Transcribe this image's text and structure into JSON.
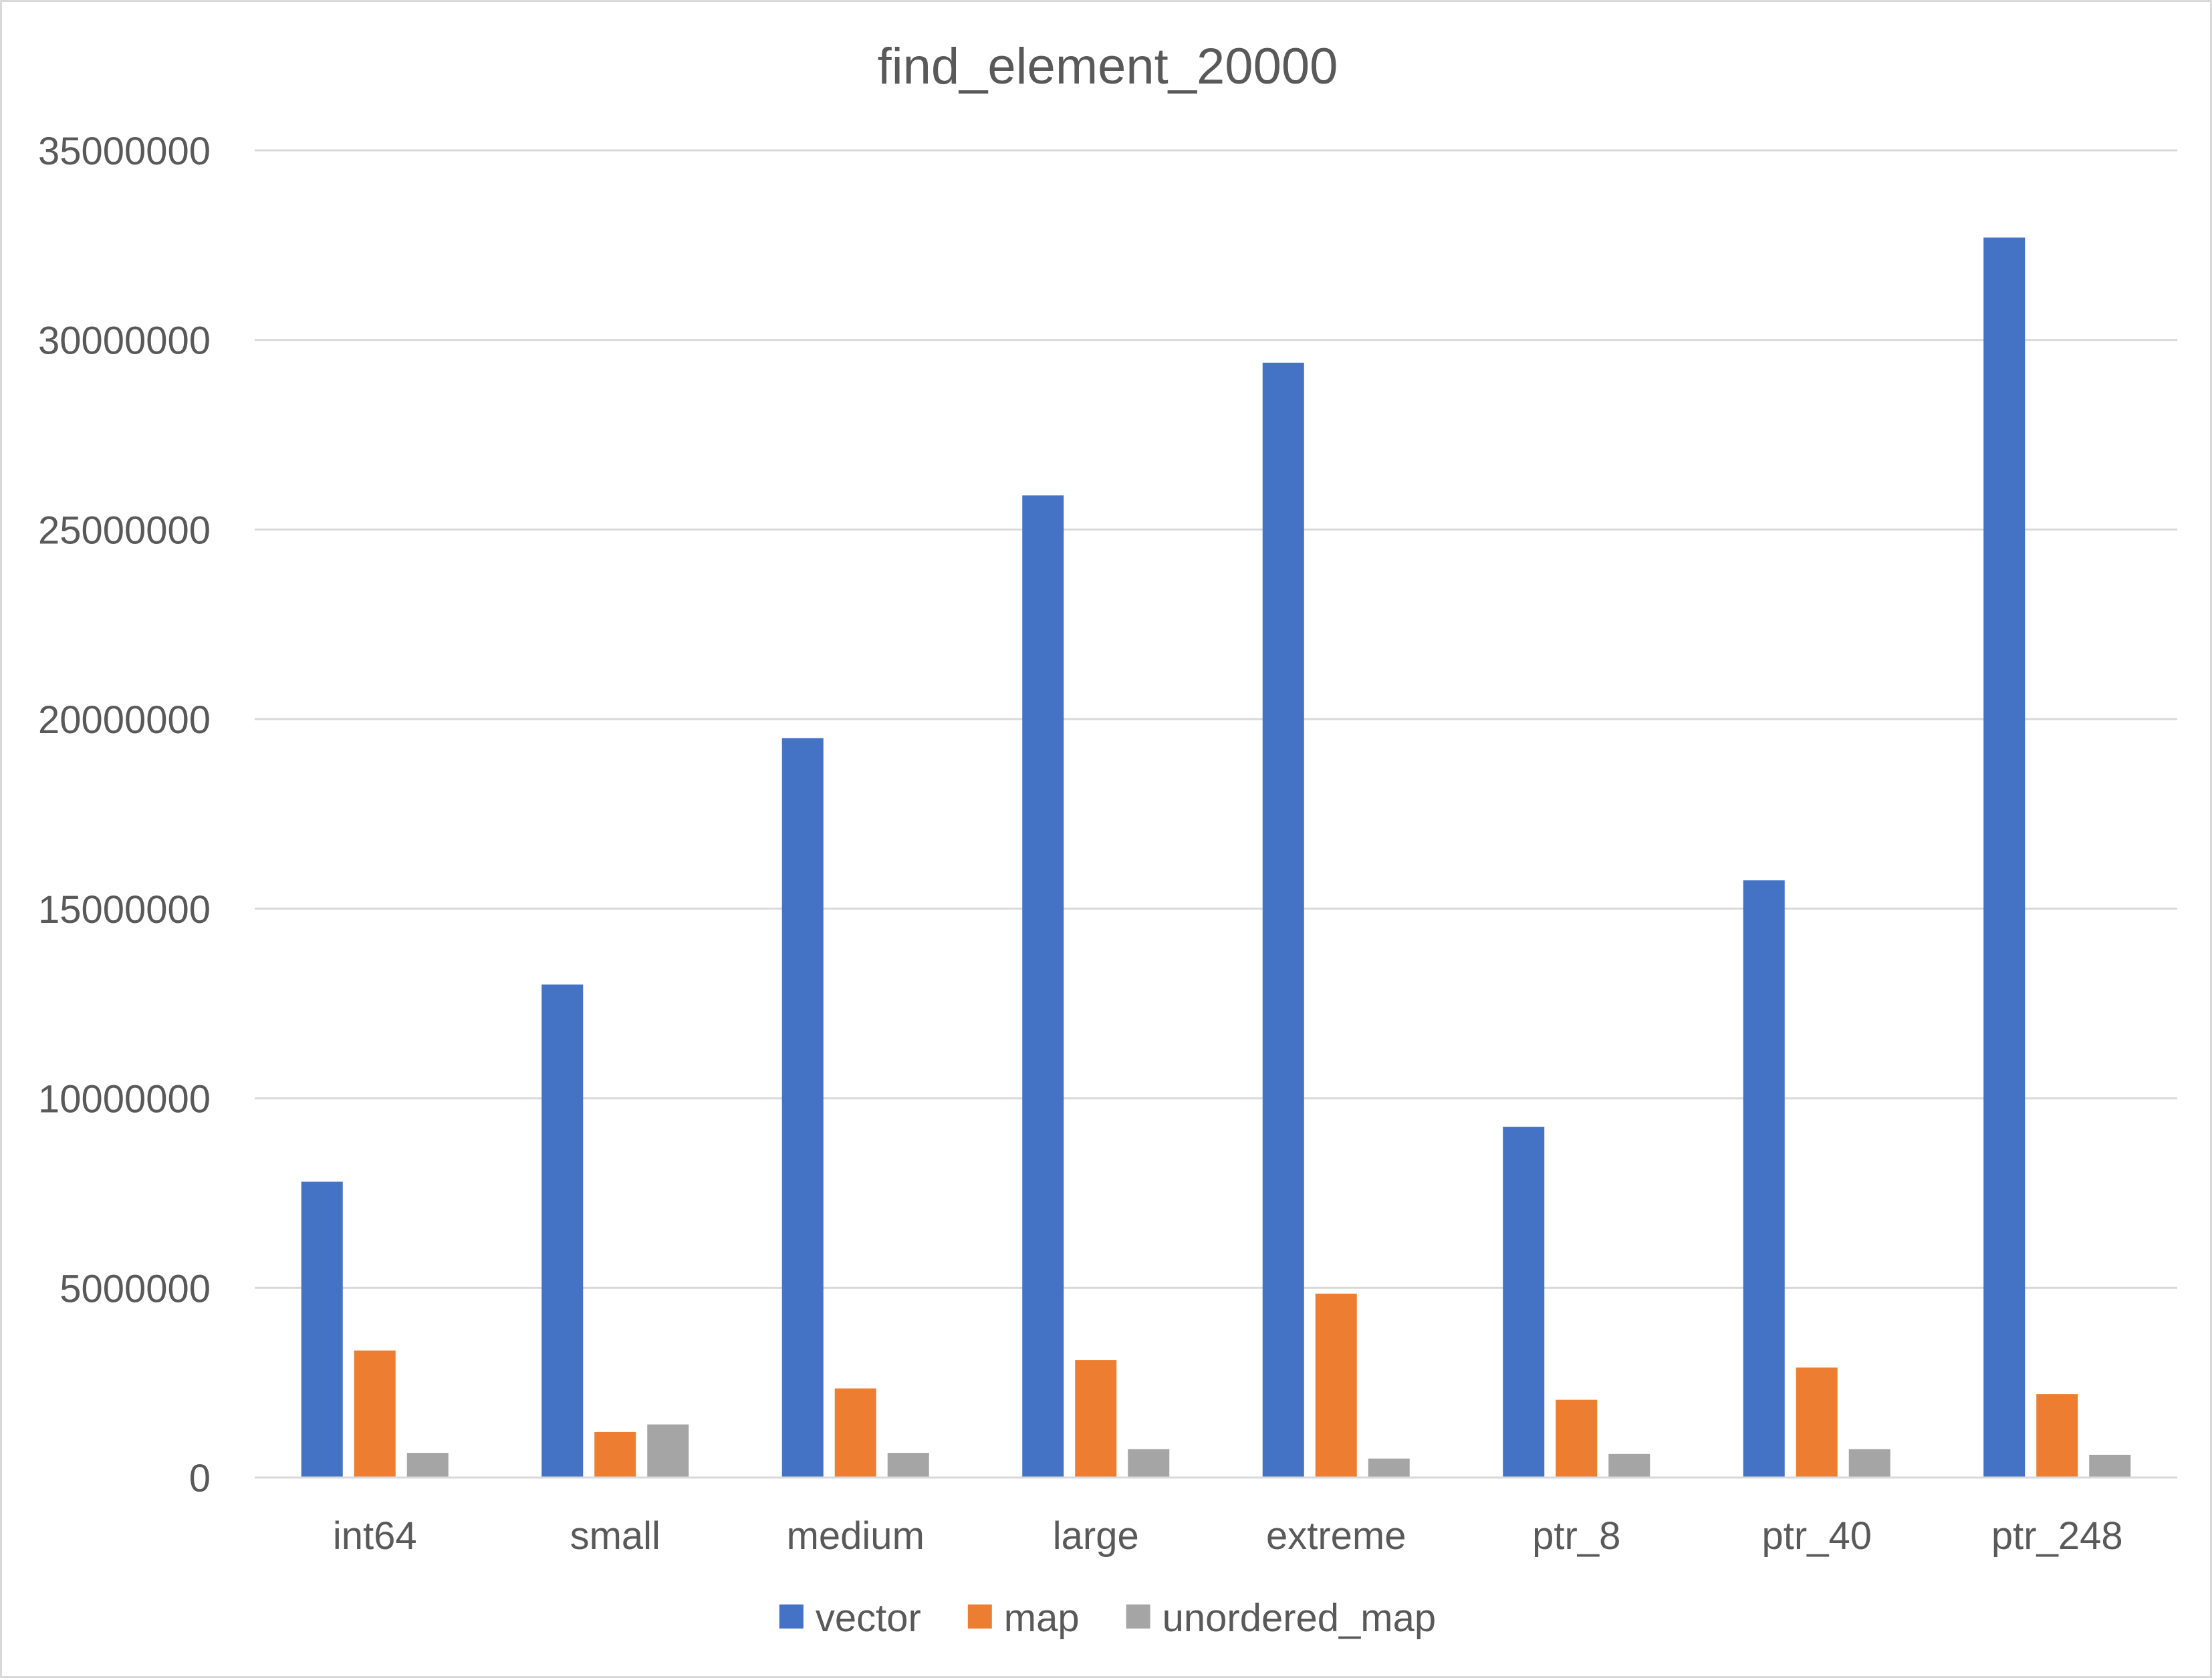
{
  "chart_data": {
    "type": "bar",
    "title": "find_element_20000",
    "xlabel": "",
    "ylabel": "",
    "categories": [
      "int64",
      "small",
      "medium",
      "large",
      "extreme",
      "ptr_8",
      "ptr_40",
      "ptr_248"
    ],
    "series": [
      {
        "name": "vector",
        "color": "#4472c4",
        "values": [
          7800000,
          13000000,
          19500000,
          25900000,
          29400000,
          9250000,
          15750000,
          32700000
        ]
      },
      {
        "name": "map",
        "color": "#ed7d31",
        "values": [
          3350000,
          1200000,
          2350000,
          3100000,
          4850000,
          2050000,
          2900000,
          2200000
        ]
      },
      {
        "name": "unordered_map",
        "color": "#a5a5a5",
        "values": [
          650000,
          1400000,
          650000,
          750000,
          500000,
          620000,
          750000,
          600000
        ]
      }
    ],
    "yticks": [
      "0",
      "5000000",
      "10000000",
      "15000000",
      "20000000",
      "25000000",
      "30000000",
      "35000000"
    ],
    "ylim": [
      0,
      35000000
    ],
    "grid": true,
    "gridline_color": "#d9d9d9",
    "legend_position": "bottom"
  }
}
